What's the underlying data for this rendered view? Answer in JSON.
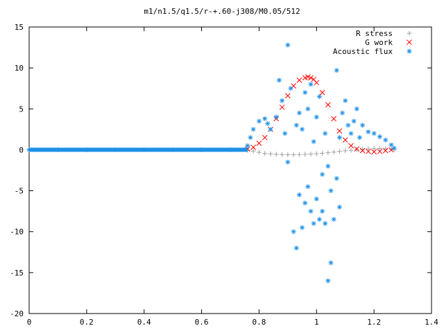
{
  "chart_data": {
    "type": "scatter",
    "title": "m1/n1.5/q1.5/r-+.60-j308/M0.05/512",
    "xlabel": "",
    "ylabel": "",
    "xlim": [
      0,
      1.4
    ],
    "ylim": [
      -20,
      15
    ],
    "x_ticks": [
      "0",
      "0.2",
      "0.4",
      "0.6",
      "0.8",
      "1",
      "1.2",
      "1.4"
    ],
    "y_ticks": [
      "15",
      "10",
      "5",
      "0",
      "-5",
      "-10",
      "-15",
      "-20"
    ],
    "grid": false,
    "legend_position": "top-right",
    "series": [
      {
        "name": "R stress",
        "color": "#a0a0a0",
        "marker": "plus",
        "x": [
          0.0,
          0.1,
          0.2,
          0.3,
          0.4,
          0.5,
          0.6,
          0.7,
          0.76,
          0.78,
          0.8,
          0.82,
          0.84,
          0.86,
          0.88,
          0.9,
          0.92,
          0.94,
          0.96,
          0.98,
          1.0,
          1.02,
          1.04,
          1.06,
          1.08,
          1.1,
          1.12,
          1.14,
          1.16,
          1.18,
          1.2,
          1.22,
          1.24,
          1.26,
          1.27
        ],
        "y": [
          0.0,
          0.0,
          0.0,
          0.0,
          0.0,
          0.0,
          0.0,
          0.0,
          -0.05,
          -0.15,
          -0.3,
          -0.45,
          -0.5,
          -0.55,
          -0.58,
          -0.6,
          -0.6,
          -0.58,
          -0.55,
          -0.52,
          -0.48,
          -0.42,
          -0.35,
          -0.28,
          -0.2,
          -0.12,
          -0.05,
          0.02,
          0.08,
          0.12,
          0.15,
          0.15,
          0.12,
          0.08,
          0.05
        ]
      },
      {
        "name": "G work",
        "color": "#ff0000",
        "marker": "cross",
        "x": [
          0.76,
          0.78,
          0.8,
          0.82,
          0.84,
          0.86,
          0.88,
          0.9,
          0.92,
          0.94,
          0.96,
          0.97,
          0.98,
          0.99,
          1.0,
          1.02,
          1.04,
          1.06,
          1.08,
          1.1,
          1.12,
          1.14,
          1.16,
          1.18,
          1.2,
          1.22,
          1.24,
          1.26
        ],
        "y": [
          0.1,
          0.3,
          0.8,
          1.5,
          2.5,
          3.8,
          5.2,
          6.6,
          7.8,
          8.5,
          8.8,
          8.9,
          8.8,
          8.6,
          8.2,
          7.0,
          5.5,
          3.8,
          2.3,
          1.2,
          0.5,
          0.1,
          -0.1,
          -0.2,
          -0.25,
          -0.2,
          -0.1,
          0.0
        ]
      },
      {
        "name": "Acoustic flux",
        "color": "#1e90e6",
        "marker": "star",
        "x": [
          0.0,
          0.76,
          0.77,
          0.78,
          0.8,
          0.82,
          0.83,
          0.84,
          0.86,
          0.87,
          0.88,
          0.89,
          0.9,
          0.9,
          0.91,
          0.92,
          0.93,
          0.93,
          0.94,
          0.94,
          0.95,
          0.95,
          0.96,
          0.96,
          0.97,
          0.97,
          0.98,
          0.98,
          0.99,
          0.99,
          1.0,
          1.0,
          1.01,
          1.01,
          1.02,
          1.02,
          1.03,
          1.03,
          1.04,
          1.04,
          1.05,
          1.05,
          1.06,
          1.07,
          1.07,
          1.08,
          1.08,
          1.09,
          1.1,
          1.11,
          1.12,
          1.13,
          1.14,
          1.15,
          1.16,
          1.18,
          1.2,
          1.22,
          1.24,
          1.26,
          1.27
        ],
        "y": [
          0.0,
          0.5,
          1.5,
          2.5,
          3.5,
          3.8,
          3.2,
          2.5,
          4.0,
          8.5,
          6.0,
          2.0,
          12.8,
          -1.5,
          7.5,
          -10.0,
          -12.0,
          3.0,
          -5.5,
          4.5,
          -9.5,
          2.5,
          -6.5,
          7.0,
          -4.5,
          5.0,
          -7.5,
          8.0,
          -9.0,
          1.0,
          -6.0,
          4.0,
          -8.5,
          6.5,
          -3.0,
          -7.5,
          -9.0,
          2.0,
          -16.0,
          -2.0,
          -13.8,
          -5.0,
          -8.5,
          -3.5,
          9.7,
          1.5,
          -7.0,
          4.5,
          6.0,
          3.0,
          2.0,
          3.5,
          5.0,
          1.5,
          3.0,
          2.2,
          2.0,
          1.6,
          1.2,
          0.6,
          0.2
        ]
      }
    ]
  }
}
